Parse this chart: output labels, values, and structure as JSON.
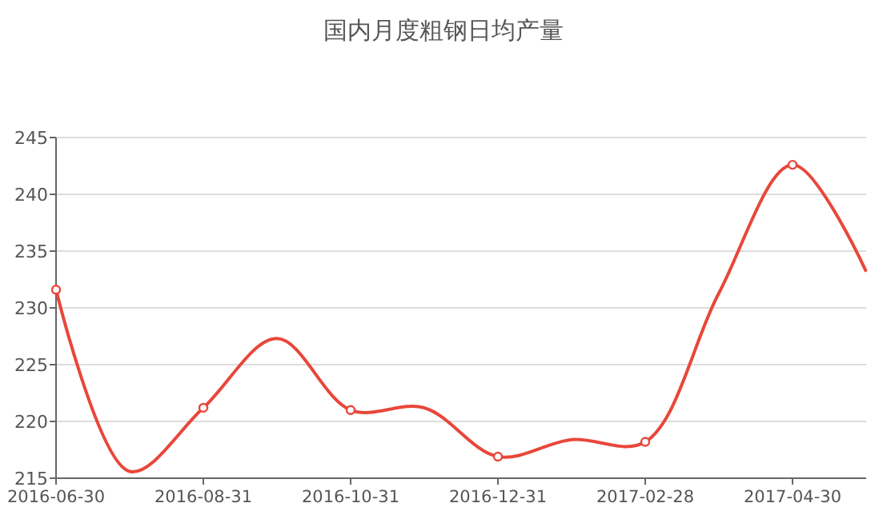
{
  "chart_data": {
    "type": "line",
    "title": "国内月度粗钢日均产量",
    "categories": [
      "2016-06-30",
      null,
      "2016-08-31",
      null,
      "2016-10-31",
      null,
      "2016-12-31",
      null,
      "2017-02-28",
      null,
      "2017-04-30",
      null
    ],
    "series": [
      {
        "color": "#e8473a",
        "values": [
          231.6,
          215.6,
          221.2,
          227.3,
          221.0,
          221.2,
          216.9,
          218.4,
          218.2,
          231.3,
          242.6,
          233.2
        ]
      }
    ],
    "ylim": [
      215,
      245
    ],
    "yticks": [
      215,
      220,
      225,
      230,
      235,
      240,
      245
    ],
    "grid": "y",
    "marker": "circle",
    "line_style": "solid"
  }
}
